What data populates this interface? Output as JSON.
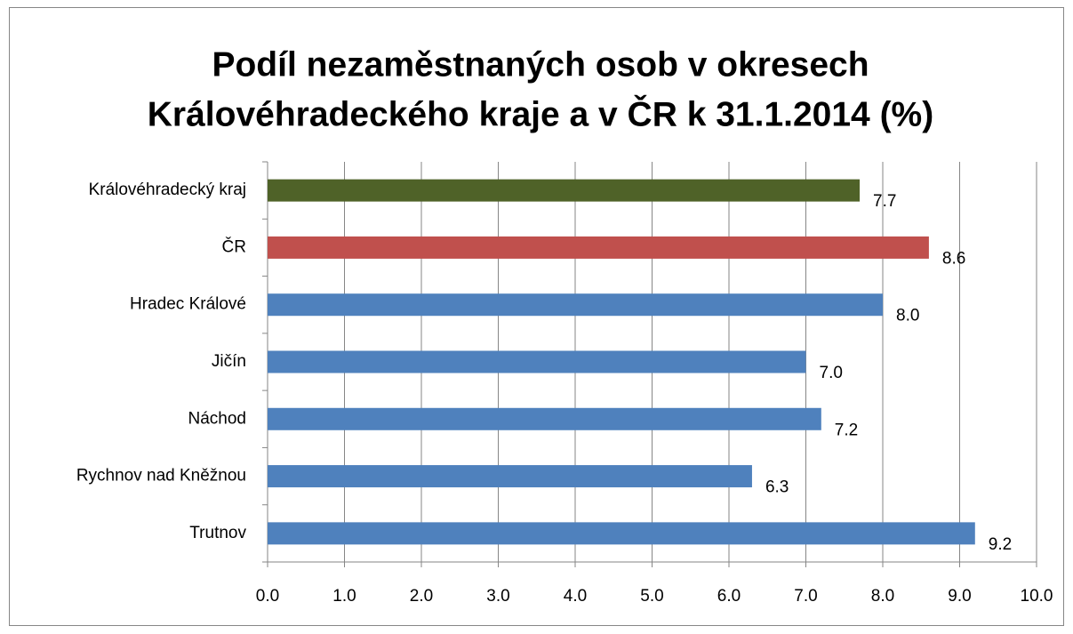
{
  "chart_data": {
    "type": "bar",
    "orientation": "horizontal",
    "title": [
      "Podíl nezaměstnaných osob v okresech",
      "Královéhradeckého kraje a v ČR k 31.1.2014 (%)"
    ],
    "categories": [
      "Královéhradecký kraj",
      "ČR",
      "Hradec Králové",
      "Jičín",
      "Náchod",
      "Rychnov nad Kněžnou",
      "Trutnov"
    ],
    "values": [
      7.7,
      8.6,
      8,
      7,
      7.2,
      6.3,
      9.2
    ],
    "value_labels": [
      "7.7",
      "8.6",
      "8.0",
      "7.0",
      "7.2",
      "6.3",
      "9.2"
    ],
    "colors": [
      "#4f6228",
      "#c0504d",
      "#4f81bd",
      "#4f81bd",
      "#4f81bd",
      "#4f81bd",
      "#4f81bd"
    ],
    "xlim": [
      0,
      10
    ],
    "xticks": [
      {
        "value": 0,
        "label": "0.0"
      },
      {
        "value": 1,
        "label": "1.0"
      },
      {
        "value": 2,
        "label": "2.0"
      },
      {
        "value": 3,
        "label": "3.0"
      },
      {
        "value": 4,
        "label": "4.0"
      },
      {
        "value": 5,
        "label": "5.0"
      },
      {
        "value": 6,
        "label": "6.0"
      },
      {
        "value": 7,
        "label": "7.0"
      },
      {
        "value": 8,
        "label": "8.0"
      },
      {
        "value": 9,
        "label": "9.0"
      },
      {
        "value": 10,
        "label": "10.0"
      }
    ],
    "grid": true
  }
}
